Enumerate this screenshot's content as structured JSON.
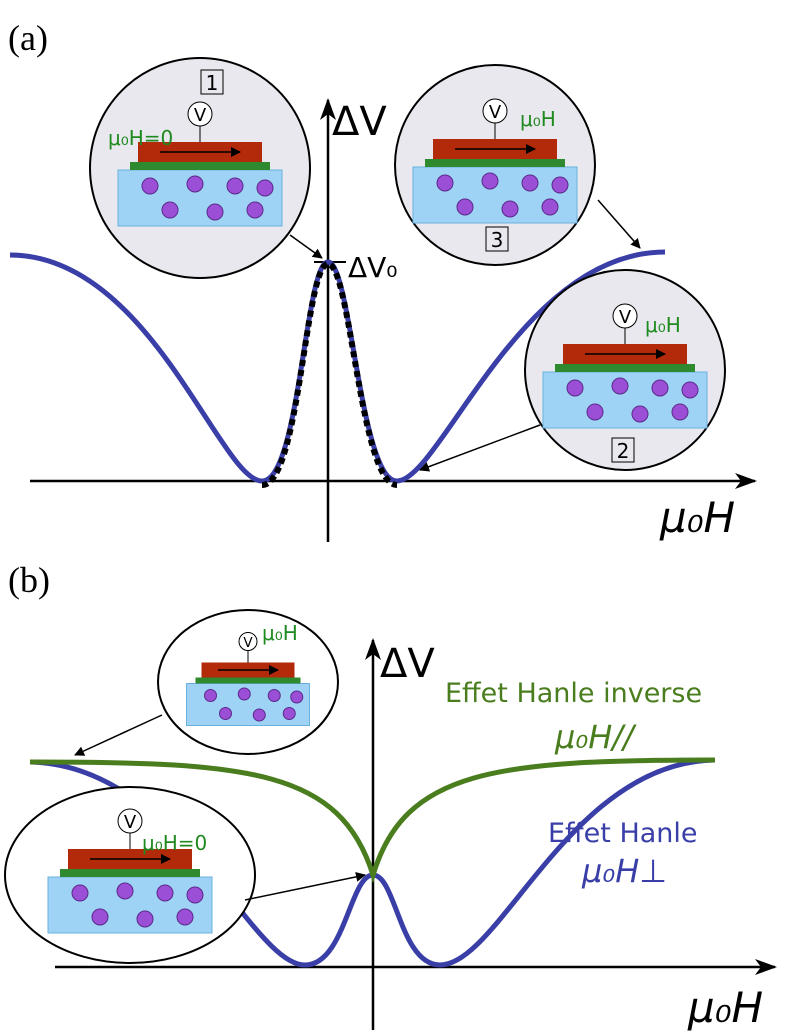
{
  "panel_a": {
    "label": "(a)",
    "y_axis_label": "ΔV",
    "peak_label": "ΔV₀",
    "x_axis_label": "μ₀H",
    "insets": [
      {
        "number": "1",
        "voltmeter": "V",
        "field_label": "μ₀H=0"
      },
      {
        "number": "2",
        "voltmeter": "V",
        "field_label": "μ₀H"
      },
      {
        "number": "3",
        "voltmeter": "V",
        "field_label": "μ₀H"
      }
    ]
  },
  "panel_b": {
    "label": "(b)",
    "y_axis_label": "ΔV",
    "x_axis_label": "μ₀H",
    "curves": [
      {
        "name": "Effet Hanle inverse",
        "field_label": "μ₀H//"
      },
      {
        "name": "Effet Hanle",
        "field_label": "μ₀H⊥"
      }
    ],
    "insets": [
      {
        "voltmeter": "V",
        "field_label": "μ₀H"
      },
      {
        "voltmeter": "V",
        "field_label": "μ₀H=0"
      }
    ]
  }
}
